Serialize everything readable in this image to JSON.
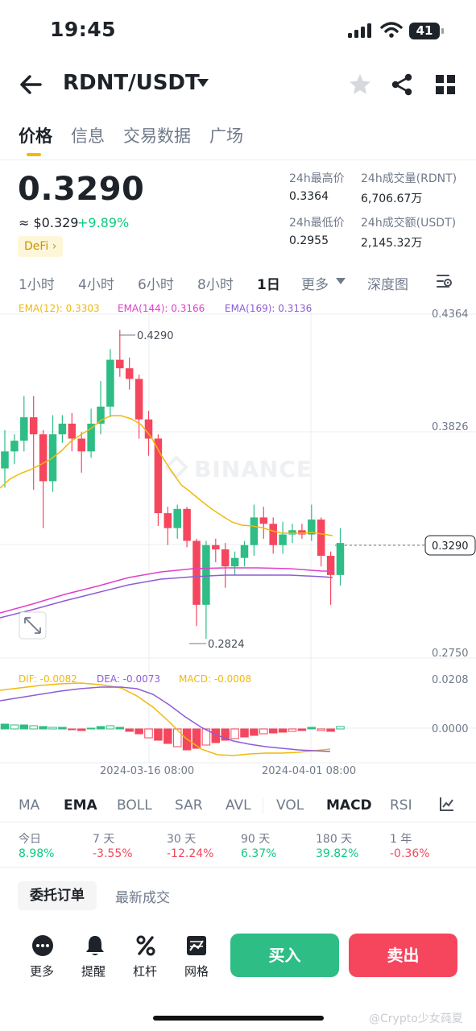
{
  "status_bar": {
    "time": "19:45",
    "battery": "41"
  },
  "header": {
    "pair": "RDNT/USDT"
  },
  "tabs": [
    "价格",
    "信息",
    "交易数据",
    "广场"
  ],
  "price": {
    "last": "0.3290",
    "approx_usd": "≈ $0.329",
    "change": "+9.89%",
    "tag": "DeFi ›"
  },
  "stats": {
    "high_label": "24h最高价",
    "high_value": "0.3364",
    "vol_base_label": "24h成交量(RDNT)",
    "vol_base_value": "6,706.67万",
    "low_label": "24h最低价",
    "low_value": "0.2955",
    "vol_quote_label": "24h成交额(USDT)",
    "vol_quote_value": "2,145.32万"
  },
  "intervals": [
    "1小时",
    "4小时",
    "6小时",
    "8小时",
    "1日",
    "更多",
    "深度图"
  ],
  "chart": {
    "ema12": "EMA(12): 0.3303",
    "ema144": "EMA(144): 0.3166",
    "ema169": "EMA(169): 0.3136",
    "price_ticks": [
      "0.4364",
      "0.3826",
      "0.2750"
    ],
    "current_price_label": "0.3290",
    "high_marker": "0.4290",
    "low_marker": "0.2824",
    "watermark": "BINANCE",
    "dif": "DIF: -0.0082",
    "dea": "DEA: -0.0073",
    "macd": "MACD: -0.0008",
    "macd_ticks": [
      "0.0208",
      "0.0000"
    ],
    "date_labels": [
      "2024-03-16 08:00",
      "2024-04-01 08:00"
    ],
    "colors": {
      "up": "#2ebd85",
      "down": "#f6465d",
      "ema12": "#f0b90b",
      "ema144": "#e040c8",
      "ema169": "#8e5cd6"
    }
  },
  "indicators": [
    "MA",
    "EMA",
    "BOLL",
    "SAR",
    "AVL",
    "VOL",
    "MACD",
    "RSI"
  ],
  "performance": [
    {
      "label": "今日",
      "value": "8.98%",
      "dir": "up"
    },
    {
      "label": "7 天",
      "value": "-3.55%",
      "dir": "down"
    },
    {
      "label": "30 天",
      "value": "-12.24%",
      "dir": "down"
    },
    {
      "label": "90 天",
      "value": "6.37%",
      "dir": "up"
    },
    {
      "label": "180 天",
      "value": "39.82%",
      "dir": "up"
    },
    {
      "label": "1 年",
      "value": "-0.36%",
      "dir": "down"
    }
  ],
  "order_tabs": [
    "委托订单",
    "最新成交"
  ],
  "bottom_nav": [
    "更多",
    "提醒",
    "杠杆",
    "网格"
  ],
  "actions": {
    "buy": "买入",
    "sell": "卖出"
  },
  "watermark_text": "@Crypto少女莼夏"
}
